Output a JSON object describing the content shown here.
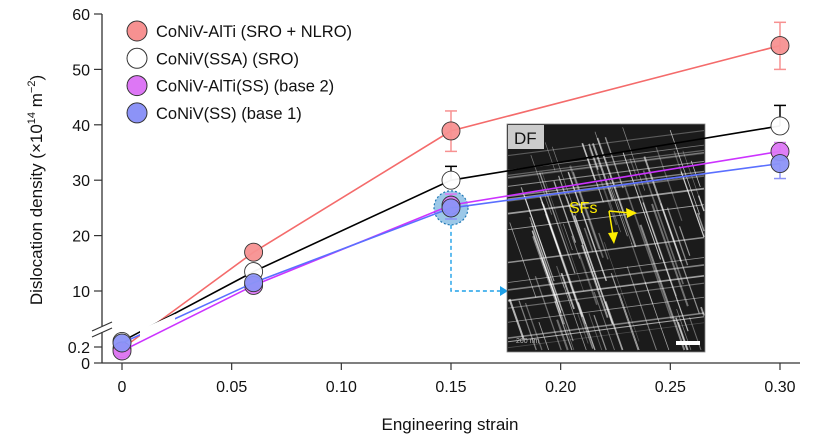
{
  "chart_data": {
    "type": "line",
    "xlabel": "Engineering strain",
    "ylabel": "Dislocation density (×10",
    "ylabel_exp": "14",
    "ylabel_unit": " m",
    "ylabel_unit_exp": "−2",
    "ylabel_close": ")",
    "x": [
      0,
      0.06,
      0.15,
      0.3
    ],
    "xlim": [
      -0.01,
      0.31
    ],
    "xticks": [
      0,
      0.05,
      0.1,
      0.15,
      0.2,
      0.25,
      0.3
    ],
    "xtick_labels": [
      "0",
      "0.05",
      "0.10",
      "0.15",
      "0.20",
      "0.25",
      "0.30"
    ],
    "yticks_upper": [
      10,
      20,
      30,
      40,
      50,
      60
    ],
    "yticks_lower": [
      0,
      0.2
    ],
    "ytick_labels_upper": [
      "10",
      "20",
      "30",
      "40",
      "50",
      "60"
    ],
    "ytick_labels_lower": [
      "0",
      "0.2"
    ],
    "y_axis_broken": true,
    "grid": false,
    "legend_position": "top-left",
    "series": [
      {
        "name": "CoNiV-AlTi (SRO + NLRO)",
        "color": "#f46b6b",
        "fill": "#f79191",
        "values": [
          0.18,
          17.0,
          38.9,
          54.3
        ],
        "err_hi": [
          null,
          null,
          42.5,
          58.5
        ],
        "err_lo": [
          null,
          null,
          35.2,
          50.0
        ]
      },
      {
        "name": "CoNiV(SSA) (SRO)",
        "color": "#000000",
        "fill": "#ffffff",
        "values": [
          0.27,
          13.5,
          30.0,
          39.8
        ],
        "err_hi": [
          null,
          null,
          32.5,
          43.5
        ],
        "err_lo": [
          null,
          null,
          null,
          null
        ]
      },
      {
        "name": "CoNiV-AlTi(SS) (base 2)",
        "color": "#cc33ff",
        "fill": "#dd77f5",
        "values": [
          0.15,
          11.0,
          25.5,
          35.2
        ],
        "err_hi": [
          null,
          null,
          27.5,
          36.8
        ],
        "err_lo": [
          null,
          null,
          null,
          33.5
        ]
      },
      {
        "name": "CoNiV(SS) (base 1)",
        "color": "#5a6fff",
        "fill": "#8c93f7",
        "values": [
          0.25,
          11.5,
          25.0,
          33.0
        ],
        "err_hi": [
          null,
          null,
          null,
          null
        ],
        "err_lo": [
          null,
          null,
          23.0,
          30.3
        ]
      }
    ],
    "highlight": {
      "x": 0.15,
      "y": 25.0,
      "color": "#1ea0e8"
    }
  },
  "inset": {
    "label": "DF",
    "annotation": "SFs",
    "scale_label": "200 nm",
    "annotation_color": "#ffee00"
  }
}
